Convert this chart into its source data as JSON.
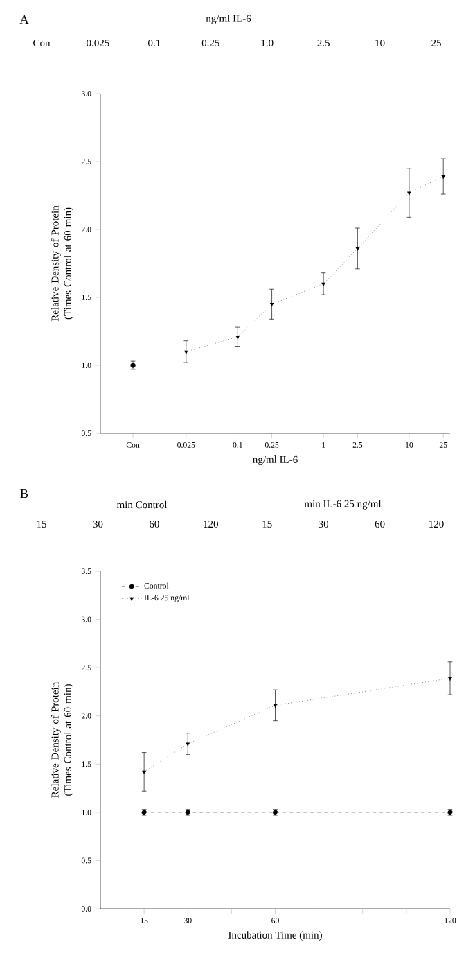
{
  "chart_data": [
    {
      "type": "line",
      "xlabel": "ng/ml IL-6",
      "ylabel": "Relative Density of Protein (Times Control at 60 min)",
      "log": "x",
      "annotations": [
        "A",
        "ng/ml IL-6",
        "Con",
        "0.025",
        "0.1",
        "0.25",
        "1.0",
        "2.5",
        "10",
        "25"
      ],
      "xlim": [
        0.0025,
        30
      ],
      "xticks": [
        {
          "value": 0.006,
          "label": "Con"
        },
        0.025,
        0.1,
        0.25,
        1,
        2.5,
        10,
        25
      ],
      "ylim": [
        0.5,
        3.0
      ],
      "yticks": [
        0.5,
        {
          "value": 1,
          "label": "1.0"
        },
        1.5,
        {
          "value": 2,
          "label": "2.0"
        },
        2.5,
        {
          "value": 3,
          "label": "3.0"
        }
      ],
      "series": [
        {
          "type": "scatter",
          "color": "#000000",
          "marker": "circle",
          "x": [
            0.006
          ],
          "values": [
            1.0
          ],
          "errors": [
            0.03
          ]
        },
        {
          "color": "#000000",
          "marker": "triangle",
          "line_style": "dotted",
          "x": [
            0.025,
            0.1,
            0.25,
            1,
            2.5,
            10,
            25
          ],
          "values": [
            1.1,
            1.21,
            1.45,
            1.6,
            1.86,
            2.27,
            2.39
          ],
          "errors": [
            0.08,
            0.07,
            0.11,
            0.08,
            0.15,
            0.18,
            0.13
          ]
        }
      ]
    },
    {
      "type": "line",
      "xlabel": "Incubation Time (min)",
      "ylabel": "Relative Density of Protein (Times Control at 60 min)",
      "legend": "top left",
      "annotations": [
        "B",
        "min Control",
        "min IL-6 25 ng/ml",
        "15",
        "30",
        "60",
        "120",
        "15",
        "30",
        "60",
        "120"
      ],
      "xlim": [
        0,
        120
      ],
      "xticks": [
        15,
        30,
        {
          "value": 45,
          "label": null
        },
        60,
        {
          "value": 75,
          "label": null
        },
        {
          "value": 90,
          "label": null
        },
        {
          "value": 105,
          "label": null
        },
        120
      ],
      "ylim": [
        0,
        3.5
      ],
      "yticks": [
        {
          "value": 0,
          "label": "0.0"
        },
        0.5,
        {
          "value": 1,
          "label": "1.0"
        },
        1.5,
        {
          "value": 2,
          "label": "2.0"
        },
        2.5,
        {
          "value": 3,
          "label": "3.0"
        },
        3.5
      ],
      "series": [
        {
          "name": "Control",
          "color": "#000000",
          "marker": "circle",
          "line_style": "dashed",
          "x": [
            15,
            30,
            60,
            120
          ],
          "values": [
            1.0,
            1.0,
            1.0,
            1.0
          ],
          "errors": [
            0.03,
            0.03,
            0.03,
            0.03
          ]
        },
        {
          "name": "IL-6 25 ng/ml",
          "color": "#000000",
          "marker": "triangle",
          "line_style": "dotted",
          "x": [
            15,
            30,
            60,
            120
          ],
          "values": [
            1.42,
            1.71,
            2.11,
            2.39
          ],
          "errors": [
            0.2,
            0.11,
            0.16,
            0.17
          ]
        }
      ]
    }
  ]
}
